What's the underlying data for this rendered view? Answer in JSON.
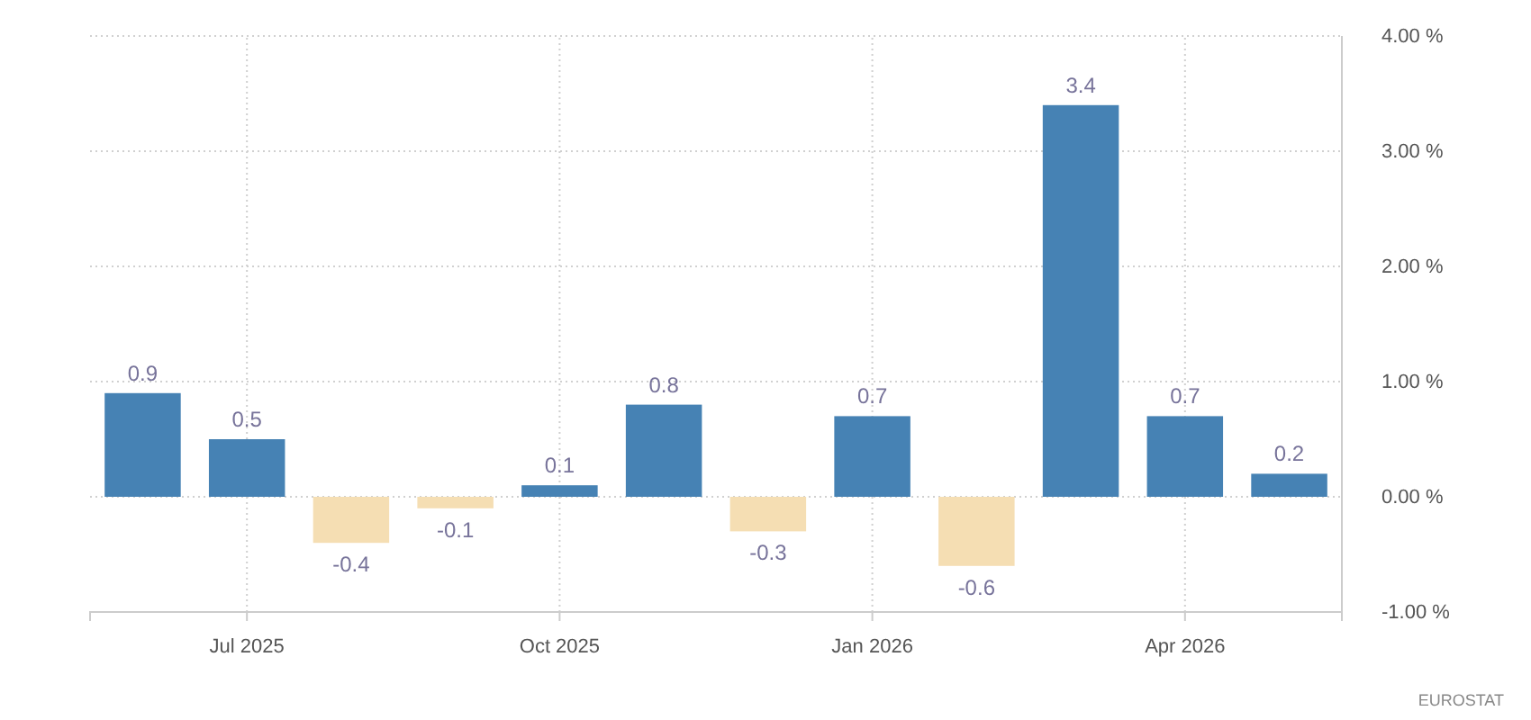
{
  "chart_data": {
    "type": "bar",
    "categories": [
      null,
      "Jul 2025",
      null,
      null,
      "Oct 2025",
      null,
      null,
      "Jan 2026",
      null,
      null,
      "Apr 2026",
      null
    ],
    "values": [
      0.9,
      0.5,
      -0.4,
      -0.1,
      0.1,
      0.8,
      -0.3,
      0.7,
      -0.6,
      3.4,
      0.7,
      0.2
    ],
    "colors": [
      "#4682b4",
      "#4682b4",
      "#f5deb3",
      "#f5deb3",
      "#4682b4",
      "#4682b4",
      "#f5deb3",
      "#4682b4",
      "#f5deb3",
      "#4682b4",
      "#4682b4",
      "#4682b4"
    ],
    "ylim": [
      -1,
      4
    ],
    "yticks": [
      {
        "value": -1,
        "label": "-1.00 %"
      },
      {
        "value": 0,
        "label": "0.00 %"
      },
      {
        "value": 1,
        "label": "1.00 %"
      },
      {
        "value": 2,
        "label": "2.00 %"
      },
      {
        "value": 3,
        "label": "3.00 %"
      },
      {
        "value": 4,
        "label": "4.00 %"
      }
    ],
    "grid": true,
    "data_labels": true,
    "annotations": [
      "EUROSTAT"
    ]
  }
}
